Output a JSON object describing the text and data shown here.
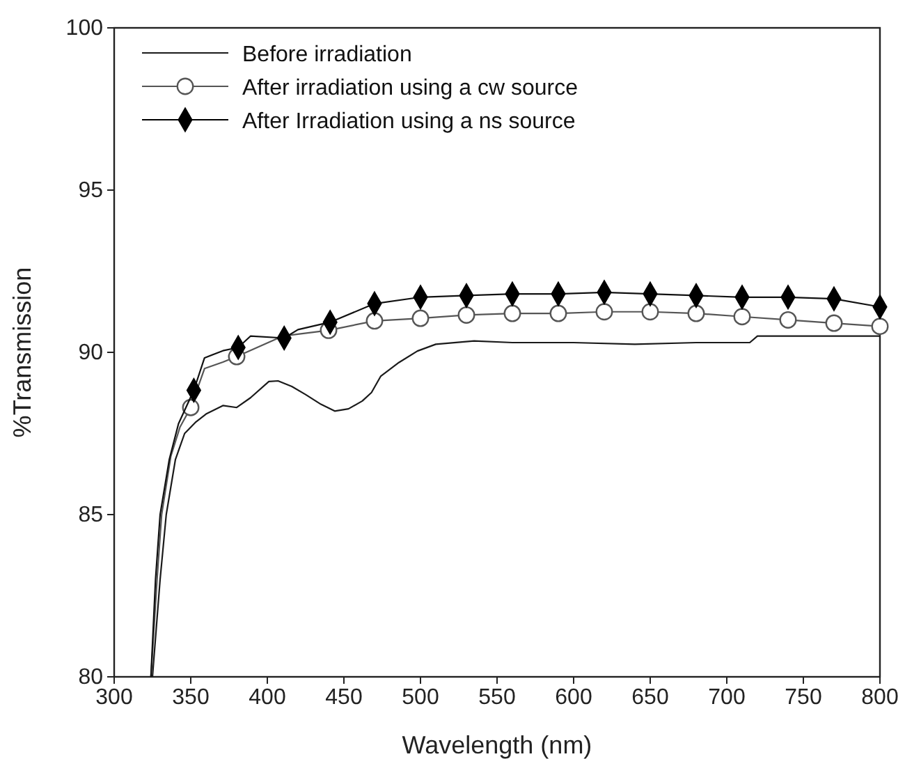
{
  "chart_data": {
    "type": "line",
    "xlabel": "Wavelength (nm)",
    "ylabel": "%Transmission",
    "xlim": [
      300,
      800
    ],
    "ylim": [
      80,
      100
    ],
    "xticks": [
      300,
      350,
      400,
      450,
      500,
      550,
      600,
      650,
      700,
      750,
      800
    ],
    "yticks": [
      80,
      85,
      90,
      95,
      100
    ],
    "legend": "top left",
    "grid": false,
    "series": [
      {
        "name": "Before irradiation",
        "color": "#1a1a1a",
        "marker": "none",
        "x": [
          325,
          330,
          334,
          340,
          346,
          353,
          360,
          371,
          380,
          389,
          401,
          407,
          416,
          425,
          435,
          444,
          453,
          462,
          468,
          474,
          486,
          498,
          510,
          535,
          560,
          600,
          640,
          680,
          715,
          720,
          760,
          800
        ],
        "values": [
          80,
          83,
          85,
          86.7,
          87.5,
          87.84,
          88.1,
          88.36,
          88.3,
          88.6,
          89.1,
          89.12,
          88.95,
          88.7,
          88.4,
          88.19,
          88.26,
          88.5,
          88.76,
          89.26,
          89.69,
          90.04,
          90.25,
          90.35,
          90.3,
          90.3,
          90.25,
          90.3,
          90.3,
          90.5,
          90.5,
          90.5
        ]
      },
      {
        "color": "#555555",
        "marker": "none",
        "x": [
          324,
          328,
          331,
          337,
          343,
          350,
          359,
          371,
          380,
          410,
          440,
          470,
          500,
          530,
          560,
          590,
          620,
          650,
          680,
          710,
          740,
          770,
          800
        ],
        "values": [
          80,
          83,
          85,
          86.8,
          87.7,
          88.3,
          89.5,
          89.7,
          89.87,
          90.5,
          90.68,
          90.97,
          91.05,
          91.15,
          91.2,
          91.2,
          91.25,
          91.25,
          91.2,
          91.1,
          91.0,
          90.9,
          90.8
        ]
      },
      {
        "name": "After irradiation using a cw source",
        "type": "scatter",
        "color": "#555555",
        "marker": "circle",
        "x": [
          350,
          380,
          410,
          440,
          470,
          500,
          530,
          560,
          590,
          620,
          650,
          680,
          710,
          740,
          770,
          800
        ],
        "values": [
          88.3,
          89.87,
          null,
          90.68,
          90.97,
          91.05,
          91.15,
          91.2,
          91.2,
          91.25,
          91.25,
          91.2,
          91.1,
          91.0,
          90.9,
          90.8
        ]
      },
      {
        "color": "#111111",
        "marker": "none",
        "x": [
          324,
          327,
          330,
          336,
          342,
          352,
          359,
          371,
          381,
          389,
          411,
          420,
          441,
          470,
          500,
          530,
          560,
          590,
          620,
          650,
          680,
          710,
          740,
          770,
          800
        ],
        "values": [
          80,
          83,
          85,
          86.7,
          87.8,
          88.83,
          89.83,
          90.05,
          90.15,
          90.5,
          90.44,
          90.7,
          90.93,
          91.5,
          91.7,
          91.75,
          91.8,
          91.8,
          91.85,
          91.8,
          91.75,
          91.7,
          91.7,
          91.65,
          91.4
        ]
      },
      {
        "name": "After Irradiation using a ns source",
        "type": "scatter",
        "color": "#000000",
        "marker": "diamond",
        "x": [
          352,
          381,
          411,
          441,
          470,
          500,
          530,
          560,
          590,
          620,
          650,
          680,
          710,
          740,
          770,
          800
        ],
        "values": [
          88.83,
          90.15,
          90.44,
          90.93,
          91.5,
          91.7,
          91.75,
          91.8,
          91.8,
          91.85,
          91.8,
          91.75,
          91.7,
          91.7,
          91.65,
          91.4
        ]
      }
    ]
  }
}
